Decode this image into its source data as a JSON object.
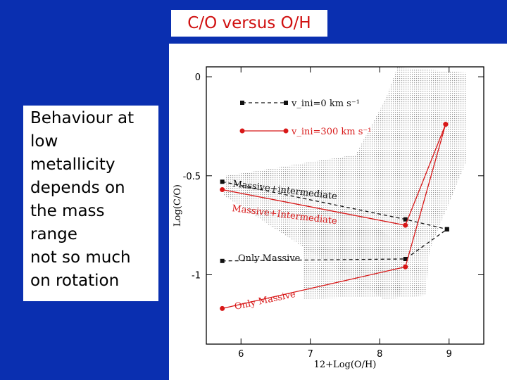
{
  "slide": {
    "title": "C/O versus O/H",
    "note_lines": [
      "Behaviour at",
      "low",
      "metallicity",
      "depends on",
      "the mass",
      "range",
      "not so much",
      "on rotation"
    ]
  },
  "colors": {
    "background": "#0a2fb0",
    "title_text": "#d01010",
    "rotating": "#d81818",
    "non_rotating": "#111111",
    "shade": "#9a9a9a"
  },
  "chart_data": {
    "type": "line",
    "title": "",
    "xlabel": "12+Log(O/H)",
    "ylabel": "Log(C/O)",
    "xlim": [
      5.5,
      9.5
    ],
    "ylim": [
      -1.35,
      0.05
    ],
    "xticks": [
      6,
      7,
      8,
      9
    ],
    "yticks": [
      {
        "value": 0,
        "label": "0"
      },
      {
        "value": -0.5,
        "label": "-0.5"
      },
      {
        "value": -1,
        "label": "-1"
      }
    ],
    "legend": [
      {
        "label": "v_ini=0 km s⁻¹",
        "color": "#111111",
        "style": "dashed"
      },
      {
        "label": "v_ini=300 km s⁻¹",
        "color": "#d81818",
        "style": "solid"
      }
    ],
    "legend_position": "top-left",
    "series": [
      {
        "name": "Massive+intermediate",
        "rotation": "v_ini=0",
        "color": "#111111",
        "dashed": true,
        "points": [
          [
            5.73,
            -0.53
          ],
          [
            8.37,
            -0.72
          ],
          [
            8.97,
            -0.77
          ]
        ]
      },
      {
        "name": "Massive+Intermediate",
        "rotation": "v_ini=300",
        "color": "#d81818",
        "dashed": false,
        "points": [
          [
            5.73,
            -0.57
          ],
          [
            8.37,
            -0.75
          ],
          [
            8.95,
            -0.24
          ]
        ]
      },
      {
        "name": "Only Massive",
        "rotation": "v_ini=0",
        "color": "#111111",
        "dashed": true,
        "points": [
          [
            5.73,
            -0.93
          ],
          [
            8.37,
            -0.92
          ],
          [
            8.97,
            -0.77
          ]
        ]
      },
      {
        "name": "Only Massive",
        "rotation": "v_ini=300",
        "color": "#d81818",
        "dashed": false,
        "points": [
          [
            5.73,
            -1.17
          ],
          [
            8.37,
            -0.96
          ],
          [
            8.95,
            -0.24
          ]
        ]
      }
    ],
    "annotations": [
      {
        "text": "Massive+intermediate",
        "color": "#111111"
      },
      {
        "text": "Massive+Intermediate",
        "color": "#d81818"
      },
      {
        "text": "Only Massive",
        "color": "#111111"
      },
      {
        "text": "Only Massive",
        "color": "#d81818"
      }
    ],
    "grid": false
  }
}
